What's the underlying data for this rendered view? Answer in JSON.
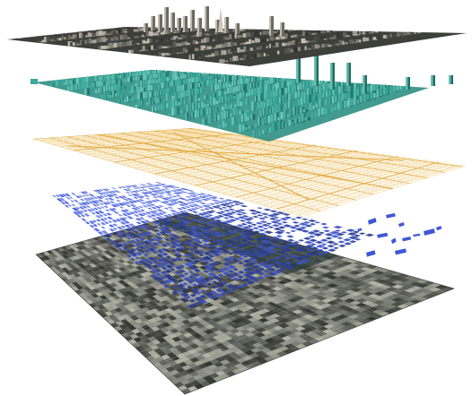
{
  "figure": {
    "layers": [
      {
        "kind": "photorealistic-3d-city-mesh",
        "colors": {
          "base": "#6d6a62",
          "dark": "#2f302c",
          "light": "#c9c4b6",
          "ground": "#3d3f3a"
        }
      },
      {
        "kind": "extruded-building-volumes",
        "colors": {
          "base": "#3aa89a",
          "dark": "#1f6f66",
          "light": "#7fd1c4"
        }
      },
      {
        "kind": "street-network-lines",
        "colors": {
          "base": "#e3ad45",
          "light": "#f2cf86"
        }
      },
      {
        "kind": "building-footprint-polygons",
        "colors": {
          "base": "#3e57d6",
          "dark": "#23358f",
          "light": "#8fa2f0"
        }
      },
      {
        "kind": "aerial-orthophoto",
        "colors": {
          "base": "#6b6e66",
          "dark": "#33352f",
          "light": "#b4b4a8",
          "water": "#2f3e3c"
        }
      }
    ]
  }
}
